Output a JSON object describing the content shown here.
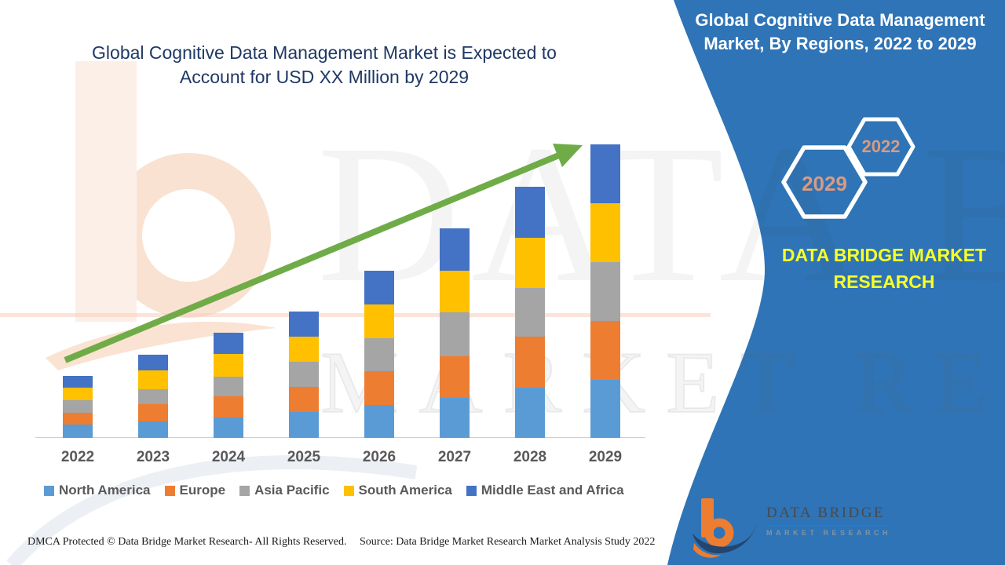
{
  "title": {
    "line1": "Global Cognitive Data Management Market is Expected to",
    "line2": "Account for USD XX Million by 2029"
  },
  "banner": {
    "line1": "Global Cognitive Data Management",
    "line2": "Market, By Regions, 2022 to 2029"
  },
  "hexagons": {
    "back_year": "2029",
    "front_year": "2022"
  },
  "side_brand": {
    "line1": "DATA BRIDGE MARKET",
    "line2": "RESEARCH"
  },
  "watermark": {
    "row1": "DATA BRIDGE",
    "row2": "MARKET RESEARCH"
  },
  "logo": {
    "name": "DATA BRIDGE",
    "tagline": "MARKET RESEARCH"
  },
  "footer": {
    "dmca": "DMCA Protected © Data Bridge Market Research- All Rights Reserved.",
    "source": "Source: Data Bridge Market Research Market Analysis Study 2022"
  },
  "colors": {
    "panel_blue": "#2E74B6",
    "title_navy": "#1F3864",
    "arrow_green": "#6FAC47",
    "hex_year_salmon": "#D89B83",
    "brand_yellow": "#FAFF24",
    "axis_text_gray": "#595959",
    "watermark_peach": "#FCEFE7",
    "logo_orange": "#ED7D31",
    "logo_navy": "#24456E"
  },
  "chart_data": {
    "type": "bar",
    "stacked": true,
    "categories": [
      "2022",
      "2023",
      "2024",
      "2025",
      "2026",
      "2027",
      "2028",
      "2029"
    ],
    "series": [
      {
        "name": "North America",
        "color": "#5B9BD5",
        "values": [
          17,
          21,
          26,
          33,
          42,
          51,
          64,
          74
        ]
      },
      {
        "name": "Europe",
        "color": "#ED7D31",
        "values": [
          15,
          22,
          27,
          32,
          43,
          53,
          65,
          75
        ]
      },
      {
        "name": "Asia Pacific",
        "color": "#A5A5A5",
        "values": [
          16,
          19,
          25,
          32,
          42,
          56,
          62,
          75
        ]
      },
      {
        "name": "South America",
        "color": "#FFC000",
        "values": [
          16,
          24,
          29,
          32,
          43,
          53,
          64,
          75
        ]
      },
      {
        "name": "Middle East and Africa",
        "color": "#4472C4",
        "values": [
          15,
          20,
          27,
          32,
          43,
          54,
          65,
          75
        ]
      }
    ],
    "value_axis": "unlabeled (values shown as USD XX Million)",
    "legend_position": "bottom",
    "trend_arrow": true,
    "xlabel": "",
    "ylabel": ""
  }
}
